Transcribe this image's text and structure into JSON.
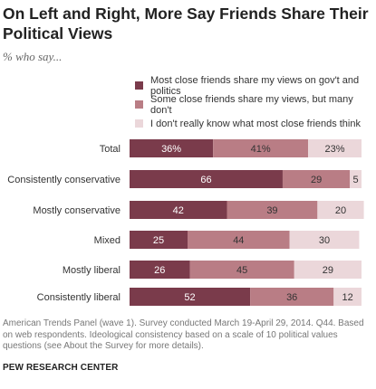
{
  "title": "On Left and Right, More Say Friends Share Their Political Views",
  "subtitle": "% who say...",
  "legend": [
    {
      "label": "Most close friends share my views on gov't and politics",
      "color": "#7a3b4b"
    },
    {
      "label": "Some close friends share my views, but many don't",
      "color": "#b97d85"
    },
    {
      "label": "I don't really know what most close friends think",
      "color": "#ebd7da"
    }
  ],
  "chart_data": {
    "type": "bar",
    "orientation": "horizontal",
    "stacked": true,
    "categories": [
      "Total",
      "Consistently conservative",
      "Mostly conservative",
      "Mixed",
      "Mostly liberal",
      "Consistently liberal"
    ],
    "series": [
      {
        "name": "Most close friends share my views on gov't and politics",
        "values": [
          36,
          66,
          42,
          25,
          26,
          52
        ],
        "labels": [
          "36%",
          "66",
          "42",
          "25",
          "26",
          "52"
        ],
        "color": "#7a3b4b",
        "label_color": "#ffffff"
      },
      {
        "name": "Some close friends share my views, but many don't",
        "values": [
          41,
          29,
          39,
          44,
          45,
          36
        ],
        "labels": [
          "41%",
          "29",
          "39",
          "44",
          "45",
          "36"
        ],
        "color": "#b97d85",
        "label_color": "#333333"
      },
      {
        "name": "I don't really know what most close friends think",
        "values": [
          23,
          5,
          20,
          30,
          29,
          12
        ],
        "labels": [
          "23%",
          "5",
          "20",
          "30",
          "29",
          "12"
        ],
        "color": "#ebd7da",
        "label_color": "#333333"
      }
    ],
    "xlim": [
      0,
      100
    ],
    "grid": false,
    "legend_position": "top"
  },
  "footer": {
    "note": "American Trends Panel (wave 1). Survey conducted March 19-April 29, 2014. Q44. Based on web respondents. Ideological consistency based on a scale of 10 political values questions (see About the Survey for more details).",
    "source": "PEW RESEARCH CENTER"
  }
}
